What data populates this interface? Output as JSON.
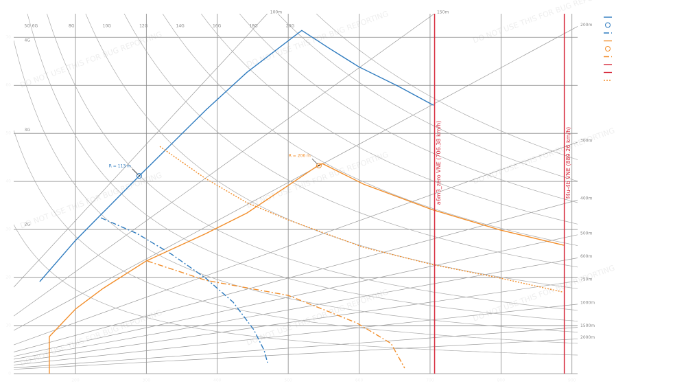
{
  "chart_data": {
    "type": "line",
    "watermark": "DO NOT USE THIS FOR BUG REPORTING",
    "xlim": [
      113,
      908
    ],
    "ylim": [
      0,
      74.9
    ],
    "xticks": [
      200,
      300,
      400,
      500,
      600,
      700,
      800,
      900
    ],
    "yticks": [
      0,
      10,
      20,
      30,
      40,
      50,
      60,
      70
    ],
    "grid": true,
    "series": [
      {
        "color": "#2e7bbf",
        "dash": "solid",
        "x": [
          149.7,
          200,
          289.9,
          383.8,
          441.8,
          519.1,
          557.8,
          599.4,
          654.5,
          704.8
        ],
        "values": [
          19.14,
          27.71,
          41.14,
          54.86,
          62.71,
          71.43,
          67.71,
          63.86,
          59.86,
          55.86
        ]
      },
      {
        "color": "#2e7bbf",
        "dash": "dashdot",
        "x": [
          235.8,
          287,
          335.4,
          383.8,
          422.4,
          451.5,
          466,
          470.8
        ],
        "values": [
          32.43,
          29.14,
          24.86,
          19.86,
          14.86,
          9.14,
          4.86,
          2.29
        ]
      },
      {
        "color": "#f28e2b",
        "dash": "solid",
        "x": [
          163.2,
          163.2,
          200,
          238.7,
          299.6,
          383.8,
          441.8,
          499.8,
          543.3,
          548.2,
          606.2,
          702.9,
          799.6,
          888.6
        ],
        "values": [
          0,
          7.71,
          13.43,
          17.71,
          23.43,
          29.14,
          33.43,
          39.14,
          43.43,
          43.71,
          39.43,
          34.14,
          29.86,
          26.71
        ]
      },
      {
        "color": "#f28e2b",
        "dash": "dotted",
        "x": [
          319,
          383.8,
          441.8,
          499.8,
          606.2,
          702.9,
          799.6,
          886.7
        ],
        "values": [
          47.29,
          40.57,
          35.57,
          32,
          26.29,
          22.71,
          19.86,
          17
        ]
      },
      {
        "color": "#f28e2b",
        "dash": "dashdot",
        "x": [
          301.5,
          383.8,
          499.8,
          596.5,
          644.9,
          664.2
        ],
        "values": [
          23.43,
          19.43,
          16.29,
          10.57,
          6.29,
          1.14
        ]
      }
    ],
    "markers": [
      {
        "x": 289.9,
        "y": 41.14,
        "color": "#2e7bbf",
        "label": "R = 113 m"
      },
      {
        "x": 543.3,
        "y": 43.29,
        "color": "#f28e2b",
        "label": "R = 206 m"
      }
    ],
    "vlines": [
      {
        "value": 706.38,
        "color": "#d62739",
        "label": "a6m3_zero VNE (706.38 km/h)"
      },
      {
        "value": 889.26,
        "color": "#d62739",
        "label": "f4u-4b VNE (889.26 km/h)"
      }
    ],
    "g_curves": [
      {
        "value": 2,
        "label": "2G"
      },
      {
        "value": 3,
        "label": "3G"
      },
      {
        "value": 4,
        "label": "4G"
      },
      {
        "value": 5,
        "label": "5G"
      },
      {
        "value": 6,
        "label": "6G"
      },
      {
        "value": 8,
        "label": "8G"
      },
      {
        "value": 10,
        "label": "10G"
      },
      {
        "value": 12,
        "label": "12G"
      },
      {
        "value": 14,
        "label": "14G"
      },
      {
        "value": 16,
        "label": "16G"
      },
      {
        "value": 18,
        "label": "18G"
      },
      {
        "value": 20,
        "label": "20G"
      }
    ],
    "radius_lines": [
      {
        "value": 100,
        "label": "100m"
      },
      {
        "value": 150,
        "label": "150m"
      },
      {
        "value": 200,
        "label": "200m"
      },
      {
        "value": 300,
        "label": "300m"
      },
      {
        "value": 400,
        "label": "400m"
      },
      {
        "value": 500,
        "label": "500m"
      },
      {
        "value": 600,
        "label": "600m"
      },
      {
        "value": 750,
        "label": "750m"
      },
      {
        "value": 1000,
        "label": "1000m"
      },
      {
        "value": 1500,
        "label": "1500m"
      },
      {
        "value": 2000,
        "label": "2000m"
      }
    ]
  }
}
